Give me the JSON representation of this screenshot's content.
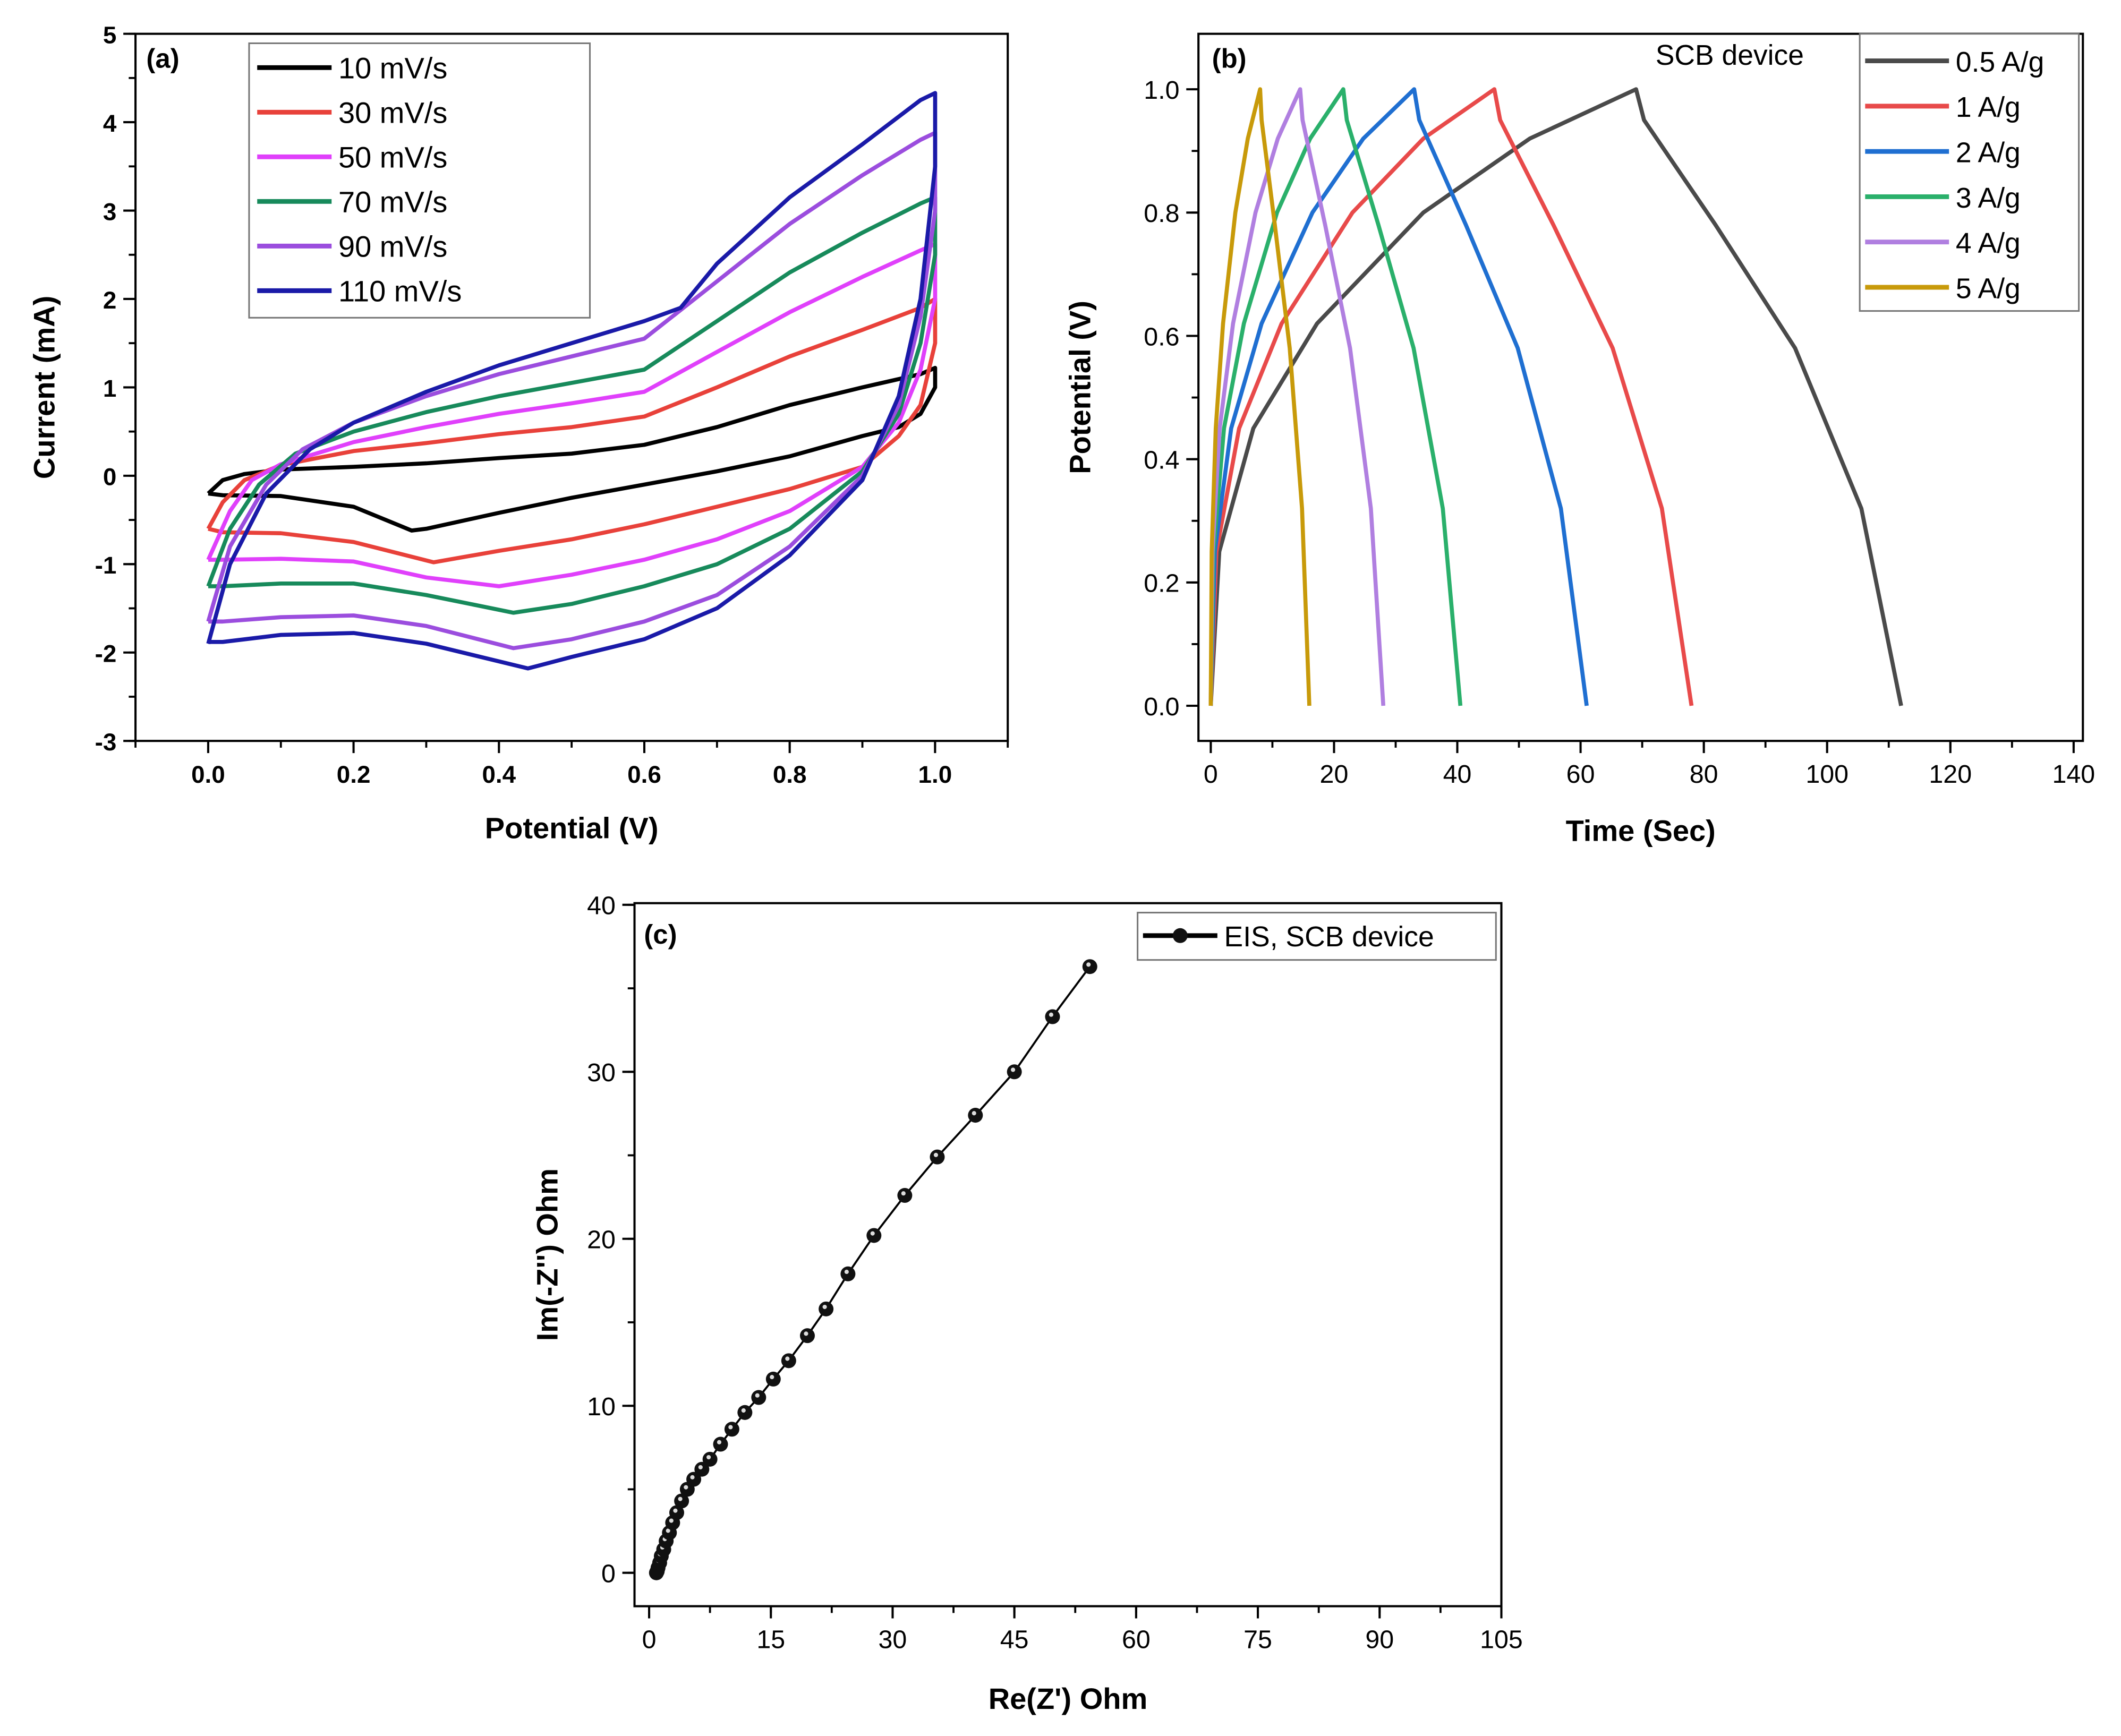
{
  "chart_data": [
    {
      "panel": "(a)",
      "type": "line",
      "xlabel": "Potential (V)",
      "ylabel": "Current (mA)",
      "xlim": [
        -0.1,
        1.1
      ],
      "ylim": [
        -3,
        5
      ],
      "xticks": [
        0.0,
        0.2,
        0.4,
        0.6,
        0.8,
        1.0
      ],
      "xtick_labels": [
        "0.0",
        "0.2",
        "0.4",
        "0.6",
        "0.8",
        "1.0"
      ],
      "yticks": [
        -3,
        -2,
        -1,
        0,
        1,
        2,
        3,
        4,
        5
      ],
      "ytick_labels": [
        "-3",
        "-2",
        "-1",
        "0",
        "1",
        "2",
        "3",
        "4",
        "5"
      ],
      "legend_position": "top-left",
      "series": [
        {
          "name": "10 mV/s",
          "color": "#000000",
          "points": [
            [
              0,
              -0.2
            ],
            [
              0.02,
              -0.05
            ],
            [
              0.05,
              0.02
            ],
            [
              0.1,
              0.07
            ],
            [
              0.2,
              0.1
            ],
            [
              0.3,
              0.14
            ],
            [
              0.4,
              0.2
            ],
            [
              0.5,
              0.25
            ],
            [
              0.6,
              0.35
            ],
            [
              0.7,
              0.55
            ],
            [
              0.8,
              0.8
            ],
            [
              0.9,
              1.0
            ],
            [
              0.98,
              1.15
            ],
            [
              1.0,
              1.22
            ],
            [
              1.0,
              1.0
            ],
            [
              0.98,
              0.7
            ],
            [
              0.95,
              0.55
            ],
            [
              0.9,
              0.45
            ],
            [
              0.8,
              0.22
            ],
            [
              0.7,
              0.05
            ],
            [
              0.6,
              -0.1
            ],
            [
              0.5,
              -0.25
            ],
            [
              0.4,
              -0.42
            ],
            [
              0.3,
              -0.6
            ],
            [
              0.28,
              -0.62
            ],
            [
              0.2,
              -0.35
            ],
            [
              0.1,
              -0.23
            ],
            [
              0.02,
              -0.22
            ],
            [
              0,
              -0.2
            ]
          ]
        },
        {
          "name": "30 mV/s",
          "color": "#e8413a",
          "points": [
            [
              0,
              -0.6
            ],
            [
              0.02,
              -0.3
            ],
            [
              0.05,
              -0.05
            ],
            [
              0.1,
              0.12
            ],
            [
              0.2,
              0.28
            ],
            [
              0.3,
              0.37
            ],
            [
              0.4,
              0.47
            ],
            [
              0.5,
              0.55
            ],
            [
              0.6,
              0.67
            ],
            [
              0.7,
              1.0
            ],
            [
              0.8,
              1.35
            ],
            [
              0.9,
              1.65
            ],
            [
              0.98,
              1.9
            ],
            [
              1.0,
              2.0
            ],
            [
              1.0,
              1.5
            ],
            [
              0.98,
              0.8
            ],
            [
              0.95,
              0.45
            ],
            [
              0.9,
              0.1
            ],
            [
              0.8,
              -0.15
            ],
            [
              0.7,
              -0.35
            ],
            [
              0.6,
              -0.55
            ],
            [
              0.5,
              -0.72
            ],
            [
              0.4,
              -0.85
            ],
            [
              0.31,
              -0.98
            ],
            [
              0.2,
              -0.75
            ],
            [
              0.1,
              -0.65
            ],
            [
              0.02,
              -0.64
            ],
            [
              0,
              -0.6
            ]
          ]
        },
        {
          "name": "50 mV/s",
          "color": "#e040fb",
          "points": [
            [
              0,
              -0.95
            ],
            [
              0.03,
              -0.4
            ],
            [
              0.06,
              -0.05
            ],
            [
              0.1,
              0.13
            ],
            [
              0.2,
              0.38
            ],
            [
              0.3,
              0.55
            ],
            [
              0.4,
              0.7
            ],
            [
              0.5,
              0.82
            ],
            [
              0.6,
              0.95
            ],
            [
              0.7,
              1.4
            ],
            [
              0.8,
              1.85
            ],
            [
              0.9,
              2.25
            ],
            [
              0.98,
              2.55
            ],
            [
              1.0,
              2.62
            ],
            [
              1.0,
              2.0
            ],
            [
              0.98,
              1.2
            ],
            [
              0.95,
              0.6
            ],
            [
              0.9,
              0.1
            ],
            [
              0.8,
              -0.4
            ],
            [
              0.7,
              -0.72
            ],
            [
              0.6,
              -0.95
            ],
            [
              0.5,
              -1.12
            ],
            [
              0.4,
              -1.25
            ],
            [
              0.3,
              -1.15
            ],
            [
              0.2,
              -0.97
            ],
            [
              0.1,
              -0.94
            ],
            [
              0.02,
              -0.95
            ],
            [
              0,
              -0.95
            ]
          ]
        },
        {
          "name": "70 mV/s",
          "color": "#178a5b",
          "points": [
            [
              0,
              -1.25
            ],
            [
              0.03,
              -0.6
            ],
            [
              0.07,
              -0.1
            ],
            [
              0.12,
              0.25
            ],
            [
              0.2,
              0.5
            ],
            [
              0.3,
              0.72
            ],
            [
              0.4,
              0.9
            ],
            [
              0.5,
              1.05
            ],
            [
              0.6,
              1.2
            ],
            [
              0.7,
              1.75
            ],
            [
              0.8,
              2.3
            ],
            [
              0.9,
              2.75
            ],
            [
              0.98,
              3.08
            ],
            [
              1.0,
              3.15
            ],
            [
              1.0,
              2.5
            ],
            [
              0.98,
              1.5
            ],
            [
              0.95,
              0.7
            ],
            [
              0.9,
              0.05
            ],
            [
              0.8,
              -0.6
            ],
            [
              0.7,
              -1.0
            ],
            [
              0.6,
              -1.25
            ],
            [
              0.5,
              -1.45
            ],
            [
              0.42,
              -1.55
            ],
            [
              0.3,
              -1.35
            ],
            [
              0.2,
              -1.22
            ],
            [
              0.1,
              -1.22
            ],
            [
              0.02,
              -1.25
            ],
            [
              0,
              -1.25
            ]
          ]
        },
        {
          "name": "90 mV/s",
          "color": "#9b4dde",
          "points": [
            [
              0,
              -1.65
            ],
            [
              0.03,
              -0.8
            ],
            [
              0.08,
              -0.1
            ],
            [
              0.13,
              0.3
            ],
            [
              0.2,
              0.6
            ],
            [
              0.3,
              0.9
            ],
            [
              0.4,
              1.15
            ],
            [
              0.5,
              1.35
            ],
            [
              0.6,
              1.55
            ],
            [
              0.7,
              2.2
            ],
            [
              0.8,
              2.85
            ],
            [
              0.9,
              3.4
            ],
            [
              0.98,
              3.8
            ],
            [
              1.0,
              3.88
            ],
            [
              1.0,
              3.0
            ],
            [
              0.98,
              1.8
            ],
            [
              0.95,
              0.8
            ],
            [
              0.9,
              0.0
            ],
            [
              0.8,
              -0.8
            ],
            [
              0.7,
              -1.35
            ],
            [
              0.6,
              -1.65
            ],
            [
              0.5,
              -1.85
            ],
            [
              0.42,
              -1.95
            ],
            [
              0.3,
              -1.7
            ],
            [
              0.2,
              -1.58
            ],
            [
              0.1,
              -1.6
            ],
            [
              0.02,
              -1.65
            ],
            [
              0,
              -1.65
            ]
          ]
        },
        {
          "name": "110 mV/s",
          "color": "#1a1aa8",
          "points": [
            [
              0,
              -1.9
            ],
            [
              0.03,
              -1.0
            ],
            [
              0.08,
              -0.2
            ],
            [
              0.14,
              0.3
            ],
            [
              0.2,
              0.6
            ],
            [
              0.3,
              0.95
            ],
            [
              0.4,
              1.25
            ],
            [
              0.5,
              1.5
            ],
            [
              0.6,
              1.75
            ],
            [
              0.65,
              1.9
            ],
            [
              0.7,
              2.4
            ],
            [
              0.8,
              3.15
            ],
            [
              0.9,
              3.75
            ],
            [
              0.98,
              4.25
            ],
            [
              1.0,
              4.33
            ],
            [
              1.0,
              3.5
            ],
            [
              0.98,
              2.0
            ],
            [
              0.95,
              0.9
            ],
            [
              0.9,
              -0.05
            ],
            [
              0.8,
              -0.9
            ],
            [
              0.7,
              -1.5
            ],
            [
              0.6,
              -1.85
            ],
            [
              0.5,
              -2.05
            ],
            [
              0.44,
              -2.18
            ],
            [
              0.3,
              -1.9
            ],
            [
              0.2,
              -1.78
            ],
            [
              0.1,
              -1.8
            ],
            [
              0.02,
              -1.88
            ],
            [
              0,
              -1.88
            ]
          ]
        }
      ]
    },
    {
      "panel": "(b)",
      "type": "line",
      "xlabel": "Time (Sec)",
      "ylabel": "Potential (V)",
      "xlim": [
        -2,
        141.5
      ],
      "ylim": [
        -0.057,
        1.09
      ],
      "xticks": [
        0,
        20,
        40,
        60,
        80,
        100,
        120,
        140
      ],
      "xtick_labels": [
        "0",
        "20",
        "40",
        "60",
        "80",
        "100",
        "120",
        "140"
      ],
      "yticks": [
        0.0,
        0.2,
        0.4,
        0.6,
        0.8,
        1.0
      ],
      "ytick_labels": [
        "0.0",
        "0.2",
        "0.4",
        "0.6",
        "0.8",
        "1.0"
      ],
      "legend_title": "SCB device",
      "legend_position": "top-right",
      "charge_profile": {
        "time_fraction": [
          0,
          0.02,
          0.1,
          0.25,
          0.5,
          0.75,
          1.0
        ],
        "potential": [
          0,
          0.25,
          0.45,
          0.62,
          0.8,
          0.92,
          1.0
        ]
      },
      "discharge_profile": {
        "time_fraction": [
          0,
          0.03,
          0.3,
          0.6,
          0.85,
          1.0
        ],
        "potential": [
          1.0,
          0.95,
          0.78,
          0.58,
          0.32,
          0
        ]
      },
      "series": [
        {
          "name": "0.5 A/g",
          "color": "#4a4a4a",
          "charge_end": 69,
          "discharge_end": 112
        },
        {
          "name": "1 A/g",
          "color": "#e84a4a",
          "charge_end": 46,
          "discharge_end": 78
        },
        {
          "name": "2 A/g",
          "color": "#1f6fd1",
          "charge_end": 33,
          "discharge_end": 61
        },
        {
          "name": "3 A/g",
          "color": "#2ab06b",
          "charge_end": 21.5,
          "discharge_end": 40.5
        },
        {
          "name": "4 A/g",
          "color": "#b07fe0",
          "charge_end": 14.5,
          "discharge_end": 28
        },
        {
          "name": "5 A/g",
          "color": "#c89a0a",
          "charge_end": 8,
          "discharge_end": 16
        }
      ]
    },
    {
      "panel": "(c)",
      "type": "scatter",
      "xlabel": "Re(Z') Ohm",
      "ylabel": "Im(-Z'') Ohm",
      "xlim": [
        -1.8,
        105
      ],
      "ylim": [
        -2,
        40.1
      ],
      "xticks": [
        0,
        15,
        30,
        45,
        60,
        75,
        90,
        105
      ],
      "xtick_labels": [
        "0",
        "15",
        "30",
        "45",
        "60",
        "75",
        "90",
        "105"
      ],
      "yticks": [
        0,
        10,
        20,
        30,
        40
      ],
      "ytick_labels": [
        "0",
        "10",
        "20",
        "30",
        "40"
      ],
      "legend_position": "top-right",
      "series": [
        {
          "name": "EIS, SCB device",
          "color": "#000000",
          "points": [
            [
              0.9,
              0
            ],
            [
              1.0,
              0.1
            ],
            [
              1.1,
              0.3
            ],
            [
              1.3,
              0.6
            ],
            [
              1.5,
              1.0
            ],
            [
              1.8,
              1.4
            ],
            [
              2.1,
              1.9
            ],
            [
              2.5,
              2.4
            ],
            [
              2.9,
              3.0
            ],
            [
              3.4,
              3.6
            ],
            [
              4.0,
              4.3
            ],
            [
              4.7,
              5.0
            ],
            [
              5.5,
              5.6
            ],
            [
              6.5,
              6.2
            ],
            [
              7.5,
              6.8
            ],
            [
              8.8,
              7.7
            ],
            [
              10.2,
              8.6
            ],
            [
              11.8,
              9.6
            ],
            [
              13.5,
              10.5
            ],
            [
              15.3,
              11.6
            ],
            [
              17.2,
              12.7
            ],
            [
              19.5,
              14.2
            ],
            [
              21.8,
              15.8
            ],
            [
              24.5,
              17.9
            ],
            [
              27.7,
              20.2
            ],
            [
              31.5,
              22.6
            ],
            [
              35.5,
              24.9
            ],
            [
              40.2,
              27.4
            ],
            [
              45.0,
              30.0
            ],
            [
              49.7,
              33.3
            ],
            [
              54.3,
              36.3
            ]
          ]
        }
      ]
    }
  ]
}
